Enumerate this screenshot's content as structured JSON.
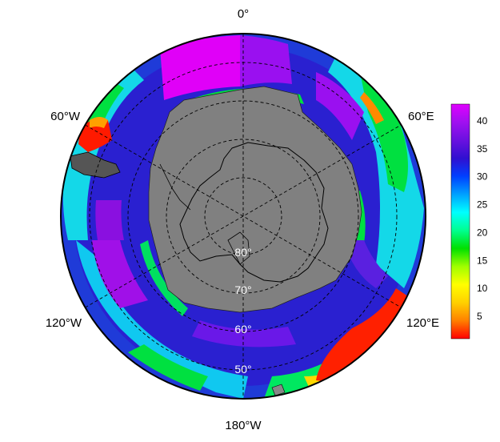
{
  "map": {
    "projection": "south-polar-stereographic",
    "lon_labels": [
      {
        "name": "lon-label-0",
        "text": "0°"
      },
      {
        "name": "lon-label-60e",
        "text": "60°E"
      },
      {
        "name": "lon-label-120e",
        "text": "120°E"
      },
      {
        "name": "lon-label-180w",
        "text": "180°W"
      },
      {
        "name": "lon-label-120w",
        "text": "120°W"
      },
      {
        "name": "lon-label-60w",
        "text": "60°W"
      }
    ],
    "lat_labels": [
      {
        "name": "lat-label-80",
        "text": "80°"
      },
      {
        "name": "lat-label-70",
        "text": "70°"
      },
      {
        "name": "lat-label-60",
        "text": "60°"
      },
      {
        "name": "lat-label-50",
        "text": "50°"
      }
    ],
    "land_color": "#808080",
    "colorbar": {
      "min": 1,
      "max": 43,
      "ticks": [
        5,
        10,
        15,
        20,
        25,
        30,
        35,
        40
      ],
      "tick_labels": [
        "5",
        "10",
        "15",
        "20",
        "25",
        "30",
        "35",
        "40"
      ],
      "colors": [
        "#ff0000",
        "#ff8000",
        "#ffd000",
        "#ffff00",
        "#a0ff00",
        "#00e000",
        "#00ff90",
        "#00ffff",
        "#00a0ff",
        "#0040ff",
        "#3010d0",
        "#6a10e0",
        "#a010f0",
        "#e000ff"
      ]
    }
  }
}
